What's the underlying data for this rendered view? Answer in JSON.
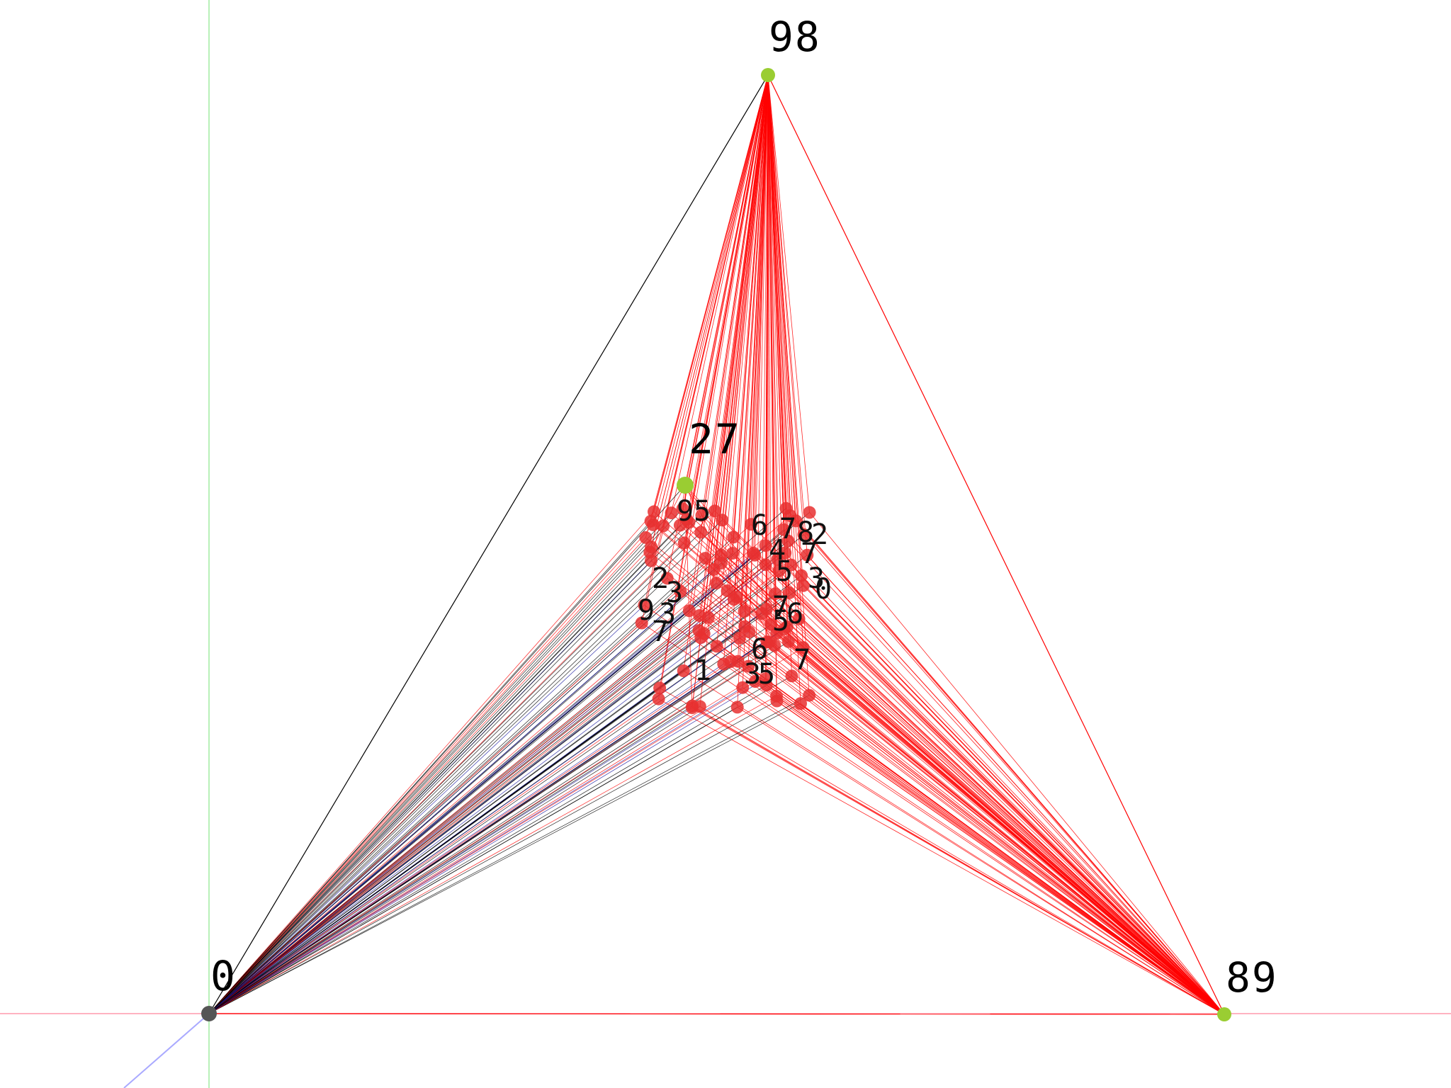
{
  "scene": {
    "background": "#ffffff",
    "axis_colors": {
      "x": "#ffb3c1",
      "y": "#b8f0b8",
      "z": "#aaaaff"
    }
  },
  "anchors": [
    {
      "id": "anchor-0",
      "label": "0",
      "color": "#555555"
    },
    {
      "id": "anchor-98",
      "label": "98",
      "color": "#9acd32"
    },
    {
      "id": "anchor-89",
      "label": "89",
      "color": "#9acd32"
    },
    {
      "id": "anchor-27",
      "label": "27",
      "color": "#9acd32"
    }
  ],
  "cluster": {
    "node_count": 96,
    "node_color": "#e83030",
    "edge_color_major": "#ff0000",
    "edge_color_origin": "#000000",
    "edge_color_blue": "#1a1aa0",
    "overlapping_labels": [
      "95",
      "6",
      "7",
      "8",
      "2",
      "4",
      "7",
      "3",
      "0",
      "5",
      "6",
      "7",
      "7",
      "3",
      "5",
      "3",
      "2",
      "9",
      "3",
      "7",
      "1",
      "6",
      "5"
    ]
  },
  "edges": {
    "anchor_pairs": [
      {
        "from": "anchor-0",
        "to": "anchor-98",
        "color": "#000000"
      },
      {
        "from": "anchor-0",
        "to": "anchor-89",
        "color": "#ff0000"
      },
      {
        "from": "anchor-98",
        "to": "anchor-89",
        "color": "#ff0000"
      }
    ]
  }
}
